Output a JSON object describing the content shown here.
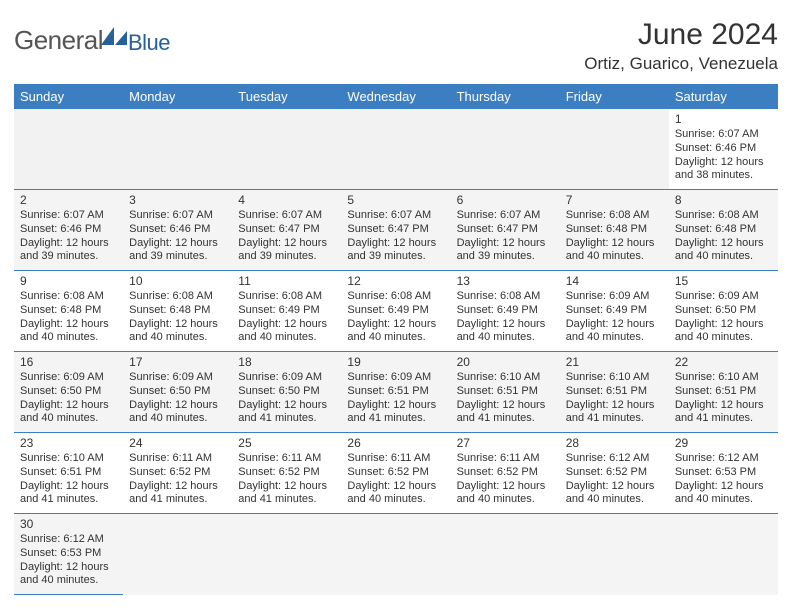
{
  "brand": {
    "general": "General",
    "blue": "Blue"
  },
  "title": "June 2024",
  "location": "Ortiz, Guarico, Venezuela",
  "colors": {
    "header_bg": "#3b7ec1",
    "header_text": "#ffffff",
    "cell_border": "#3b7ec1",
    "shade_bg": "#f4f4f4",
    "brand_gray": "#555555",
    "brand_blue": "#2a6099"
  },
  "weekdays": [
    "Sunday",
    "Monday",
    "Tuesday",
    "Wednesday",
    "Thursday",
    "Friday",
    "Saturday"
  ],
  "weeks": [
    [
      null,
      null,
      null,
      null,
      null,
      null,
      {
        "n": "1",
        "sr": "Sunrise: 6:07 AM",
        "ss": "Sunset: 6:46 PM",
        "dl1": "Daylight: 12 hours",
        "dl2": "and 38 minutes."
      }
    ],
    [
      {
        "n": "2",
        "sr": "Sunrise: 6:07 AM",
        "ss": "Sunset: 6:46 PM",
        "dl1": "Daylight: 12 hours",
        "dl2": "and 39 minutes."
      },
      {
        "n": "3",
        "sr": "Sunrise: 6:07 AM",
        "ss": "Sunset: 6:46 PM",
        "dl1": "Daylight: 12 hours",
        "dl2": "and 39 minutes."
      },
      {
        "n": "4",
        "sr": "Sunrise: 6:07 AM",
        "ss": "Sunset: 6:47 PM",
        "dl1": "Daylight: 12 hours",
        "dl2": "and 39 minutes."
      },
      {
        "n": "5",
        "sr": "Sunrise: 6:07 AM",
        "ss": "Sunset: 6:47 PM",
        "dl1": "Daylight: 12 hours",
        "dl2": "and 39 minutes."
      },
      {
        "n": "6",
        "sr": "Sunrise: 6:07 AM",
        "ss": "Sunset: 6:47 PM",
        "dl1": "Daylight: 12 hours",
        "dl2": "and 39 minutes."
      },
      {
        "n": "7",
        "sr": "Sunrise: 6:08 AM",
        "ss": "Sunset: 6:48 PM",
        "dl1": "Daylight: 12 hours",
        "dl2": "and 40 minutes."
      },
      {
        "n": "8",
        "sr": "Sunrise: 6:08 AM",
        "ss": "Sunset: 6:48 PM",
        "dl1": "Daylight: 12 hours",
        "dl2": "and 40 minutes."
      }
    ],
    [
      {
        "n": "9",
        "sr": "Sunrise: 6:08 AM",
        "ss": "Sunset: 6:48 PM",
        "dl1": "Daylight: 12 hours",
        "dl2": "and 40 minutes."
      },
      {
        "n": "10",
        "sr": "Sunrise: 6:08 AM",
        "ss": "Sunset: 6:48 PM",
        "dl1": "Daylight: 12 hours",
        "dl2": "and 40 minutes."
      },
      {
        "n": "11",
        "sr": "Sunrise: 6:08 AM",
        "ss": "Sunset: 6:49 PM",
        "dl1": "Daylight: 12 hours",
        "dl2": "and 40 minutes."
      },
      {
        "n": "12",
        "sr": "Sunrise: 6:08 AM",
        "ss": "Sunset: 6:49 PM",
        "dl1": "Daylight: 12 hours",
        "dl2": "and 40 minutes."
      },
      {
        "n": "13",
        "sr": "Sunrise: 6:08 AM",
        "ss": "Sunset: 6:49 PM",
        "dl1": "Daylight: 12 hours",
        "dl2": "and 40 minutes."
      },
      {
        "n": "14",
        "sr": "Sunrise: 6:09 AM",
        "ss": "Sunset: 6:49 PM",
        "dl1": "Daylight: 12 hours",
        "dl2": "and 40 minutes."
      },
      {
        "n": "15",
        "sr": "Sunrise: 6:09 AM",
        "ss": "Sunset: 6:50 PM",
        "dl1": "Daylight: 12 hours",
        "dl2": "and 40 minutes."
      }
    ],
    [
      {
        "n": "16",
        "sr": "Sunrise: 6:09 AM",
        "ss": "Sunset: 6:50 PM",
        "dl1": "Daylight: 12 hours",
        "dl2": "and 40 minutes."
      },
      {
        "n": "17",
        "sr": "Sunrise: 6:09 AM",
        "ss": "Sunset: 6:50 PM",
        "dl1": "Daylight: 12 hours",
        "dl2": "and 40 minutes."
      },
      {
        "n": "18",
        "sr": "Sunrise: 6:09 AM",
        "ss": "Sunset: 6:50 PM",
        "dl1": "Daylight: 12 hours",
        "dl2": "and 41 minutes."
      },
      {
        "n": "19",
        "sr": "Sunrise: 6:09 AM",
        "ss": "Sunset: 6:51 PM",
        "dl1": "Daylight: 12 hours",
        "dl2": "and 41 minutes."
      },
      {
        "n": "20",
        "sr": "Sunrise: 6:10 AM",
        "ss": "Sunset: 6:51 PM",
        "dl1": "Daylight: 12 hours",
        "dl2": "and 41 minutes."
      },
      {
        "n": "21",
        "sr": "Sunrise: 6:10 AM",
        "ss": "Sunset: 6:51 PM",
        "dl1": "Daylight: 12 hours",
        "dl2": "and 41 minutes."
      },
      {
        "n": "22",
        "sr": "Sunrise: 6:10 AM",
        "ss": "Sunset: 6:51 PM",
        "dl1": "Daylight: 12 hours",
        "dl2": "and 41 minutes."
      }
    ],
    [
      {
        "n": "23",
        "sr": "Sunrise: 6:10 AM",
        "ss": "Sunset: 6:51 PM",
        "dl1": "Daylight: 12 hours",
        "dl2": "and 41 minutes."
      },
      {
        "n": "24",
        "sr": "Sunrise: 6:11 AM",
        "ss": "Sunset: 6:52 PM",
        "dl1": "Daylight: 12 hours",
        "dl2": "and 41 minutes."
      },
      {
        "n": "25",
        "sr": "Sunrise: 6:11 AM",
        "ss": "Sunset: 6:52 PM",
        "dl1": "Daylight: 12 hours",
        "dl2": "and 41 minutes."
      },
      {
        "n": "26",
        "sr": "Sunrise: 6:11 AM",
        "ss": "Sunset: 6:52 PM",
        "dl1": "Daylight: 12 hours",
        "dl2": "and 40 minutes."
      },
      {
        "n": "27",
        "sr": "Sunrise: 6:11 AM",
        "ss": "Sunset: 6:52 PM",
        "dl1": "Daylight: 12 hours",
        "dl2": "and 40 minutes."
      },
      {
        "n": "28",
        "sr": "Sunrise: 6:12 AM",
        "ss": "Sunset: 6:52 PM",
        "dl1": "Daylight: 12 hours",
        "dl2": "and 40 minutes."
      },
      {
        "n": "29",
        "sr": "Sunrise: 6:12 AM",
        "ss": "Sunset: 6:53 PM",
        "dl1": "Daylight: 12 hours",
        "dl2": "and 40 minutes."
      }
    ],
    [
      {
        "n": "30",
        "sr": "Sunrise: 6:12 AM",
        "ss": "Sunset: 6:53 PM",
        "dl1": "Daylight: 12 hours",
        "dl2": "and 40 minutes."
      },
      null,
      null,
      null,
      null,
      null,
      null
    ]
  ]
}
